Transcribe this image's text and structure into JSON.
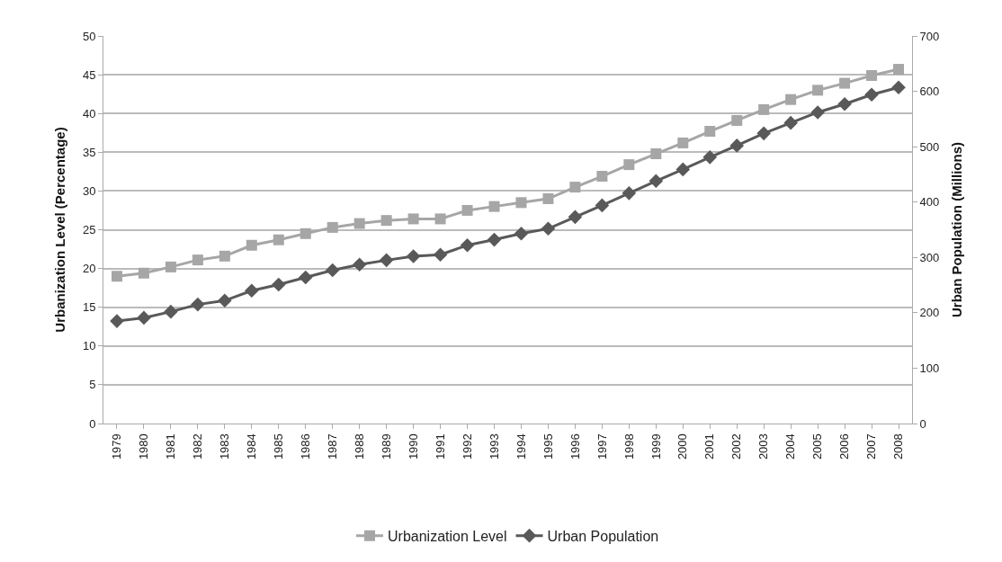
{
  "chart_data": {
    "type": "line",
    "categories": [
      "1979",
      "1980",
      "1981",
      "1982",
      "1983",
      "1984",
      "1985",
      "1986",
      "1987",
      "1988",
      "1989",
      "1990",
      "1991",
      "1992",
      "1993",
      "1994",
      "1995",
      "1996",
      "1997",
      "1998",
      "1999",
      "2000",
      "2001",
      "2002",
      "2003",
      "2004",
      "2005",
      "2006",
      "2007",
      "2008"
    ],
    "series": [
      {
        "name": "Urbanization Level",
        "color": "#a6a6a6",
        "marker": "square",
        "values": [
          19.0,
          19.4,
          20.2,
          21.1,
          21.6,
          23.0,
          23.7,
          24.5,
          25.3,
          25.8,
          26.2,
          26.4,
          26.4,
          27.5,
          28.0,
          28.5,
          29.0,
          30.5,
          31.9,
          33.4,
          34.8,
          36.2,
          37.7,
          39.1,
          40.5,
          41.8,
          43.0,
          43.9,
          44.9,
          45.7
        ]
      },
      {
        "name": "Urban Population",
        "color": "#595959",
        "marker": "diamond",
        "axis": "y2",
        "values": [
          185,
          191,
          202,
          215,
          222,
          240,
          251,
          264,
          277,
          287,
          295,
          302,
          305,
          322,
          332,
          343,
          352,
          373,
          394,
          416,
          438,
          459,
          481,
          502,
          524,
          543,
          562,
          577,
          594,
          607
        ]
      }
    ],
    "ylabel": "Urbanization Level (Percentage)",
    "y2label": "Urban Population (Millions)",
    "ylim": [
      0,
      50
    ],
    "yticks": [
      0,
      5,
      10,
      15,
      20,
      25,
      30,
      35,
      40,
      45,
      50
    ],
    "y2lim": [
      0,
      700
    ],
    "y2ticks": [
      0,
      100,
      200,
      300,
      400,
      500,
      600,
      700
    ],
    "grid": "y",
    "legend": "bottom",
    "line_style": "solid"
  }
}
